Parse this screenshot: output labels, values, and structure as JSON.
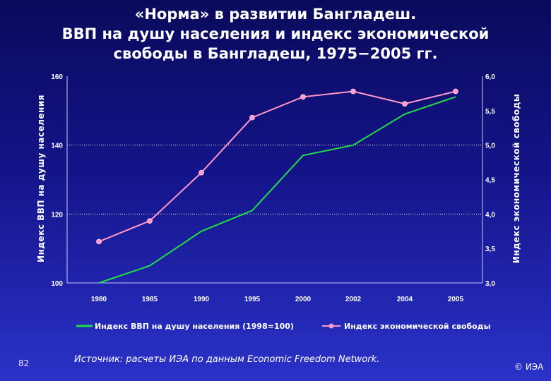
{
  "chart_data": {
    "type": "line",
    "title": "«Норма» в развитии Бангладеш.\nВВП на душу населения и индекс экономической\nсвободы в Бангладеш, 1975−2005 гг.",
    "categories": [
      "1980",
      "1985",
      "1990",
      "1995",
      "2000",
      "2002",
      "2004",
      "2005"
    ],
    "y_left": {
      "label": "Индекс ВВП на душу населения",
      "range": [
        100,
        160
      ],
      "ticks": [
        "100",
        "120",
        "140",
        "160"
      ]
    },
    "y_right": {
      "label": "Индекс экономической свободы",
      "range": [
        3.0,
        6.0
      ],
      "ticks": [
        "3,0",
        "3,5",
        "4,0",
        "4,5",
        "5,0",
        "5,5",
        "6,0"
      ]
    },
    "grid": "dotted horizontal at 120 and 140",
    "legend": "bottom",
    "series": [
      {
        "name": "Индекс ВВП на душу населения (1998=100)",
        "axis": "left",
        "color": "#22dd44",
        "values": [
          100,
          105,
          115,
          121,
          137,
          140,
          149,
          154
        ]
      },
      {
        "name": "Индекс экономической свободы",
        "axis": "right",
        "color": "#ff99cc",
        "values": [
          3.6,
          3.9,
          4.6,
          5.4,
          5.7,
          5.78,
          5.6,
          5.78
        ]
      }
    ]
  },
  "footnote": "Источник: расчеты ИЭА по данным Economic Freedom Network.",
  "page_number": "82",
  "copyright": "© ИЭА"
}
